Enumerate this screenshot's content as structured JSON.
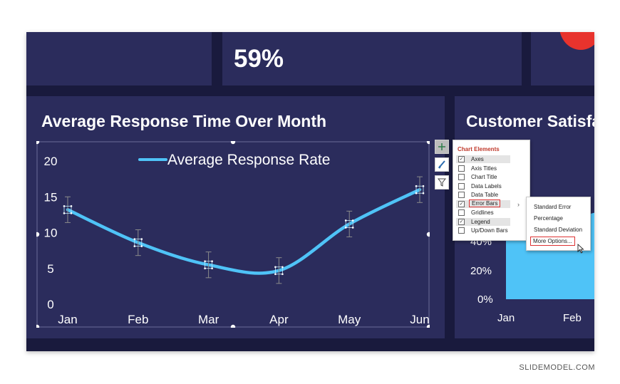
{
  "slide": {
    "kpi_value": "59%",
    "left_panel_title": "Average Response Time Over Month",
    "right_panel_title": "Customer Satisfa",
    "right_ticks": [
      "40%",
      "20%",
      "0%"
    ],
    "right_months": [
      "Jan",
      "Feb"
    ]
  },
  "chart_data": {
    "type": "line",
    "title": "",
    "legend": "Average Response Rate",
    "legend_placement": "top",
    "categories": [
      "Jan",
      "Feb",
      "Mar",
      "Apr",
      "May",
      "Jun"
    ],
    "series": [
      {
        "name": "Average Response Rate",
        "values": [
          13.2,
          8.6,
          5.5,
          4.7,
          11.2,
          16.0
        ],
        "color": "#4fc3f7",
        "error": [
          1.8,
          1.8,
          1.8,
          1.8,
          1.8,
          1.8
        ]
      }
    ],
    "y_ticks": [
      0,
      5,
      10,
      15,
      20
    ],
    "ylim": [
      0,
      20
    ],
    "grid": false,
    "error_bars": true
  },
  "chart_tools": {
    "buttons": [
      "plus-icon",
      "brush-icon",
      "filter-icon"
    ]
  },
  "chart_elements_menu": {
    "title": "Chart Elements",
    "items": [
      {
        "label": "Axes",
        "checked": true
      },
      {
        "label": "Axis Titles",
        "checked": false
      },
      {
        "label": "Chart Title",
        "checked": false
      },
      {
        "label": "Data Labels",
        "checked": false
      },
      {
        "label": "Data Table",
        "checked": false
      },
      {
        "label": "Error Bars",
        "checked": true
      },
      {
        "label": "Gridlines",
        "checked": false
      },
      {
        "label": "Legend",
        "checked": true
      },
      {
        "label": "Up/Down Bars",
        "checked": false
      }
    ]
  },
  "error_bars_submenu": {
    "items": [
      "Standard Error",
      "Percentage",
      "Standard Deviation",
      "More Options..."
    ]
  },
  "credit": "SLIDEMODEL.COM",
  "colors": {
    "slide_bg": "#191a3d",
    "panel": "#2b2c5c",
    "line": "#4fc3f7",
    "accent_red": "#e8332d"
  }
}
